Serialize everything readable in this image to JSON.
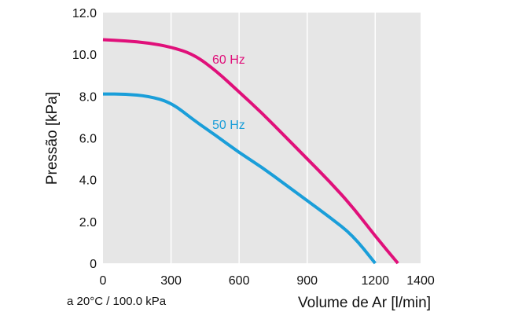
{
  "chart_data": {
    "type": "line",
    "xlabel": "Volume de Ar [l/min]",
    "ylabel": "Pressão [kPa]",
    "note": "a 20°C / 100.0 kPa",
    "xlim": [
      0,
      1400
    ],
    "ylim": [
      0,
      12
    ],
    "xticks": [
      "0",
      "300",
      "600",
      "900",
      "1200",
      "1400"
    ],
    "yticks": [
      "0",
      "2.0",
      "4.0",
      "6.0",
      "8.0",
      "10.0",
      "12.0"
    ],
    "grid": "vertical",
    "plot_background": "#e6e6e6",
    "series": [
      {
        "name": "60 Hz",
        "color": "#e0107a",
        "x": [
          0,
          100,
          200,
          300,
          400,
          500,
          600,
          700,
          800,
          900,
          1000,
          1100,
          1200,
          1300
        ],
        "y": [
          10.7,
          10.65,
          10.55,
          10.35,
          10.0,
          9.2,
          8.2,
          7.2,
          6.1,
          5.0,
          3.9,
          2.7,
          1.3,
          0
        ]
      },
      {
        "name": "50 Hz",
        "color": "#1a9ed9",
        "x": [
          0,
          100,
          200,
          300,
          400,
          500,
          600,
          700,
          800,
          900,
          1000,
          1100,
          1200
        ],
        "y": [
          8.1,
          8.1,
          8.0,
          7.7,
          6.85,
          6.1,
          5.3,
          4.6,
          3.8,
          3.0,
          2.2,
          1.35,
          0
        ]
      }
    ]
  }
}
